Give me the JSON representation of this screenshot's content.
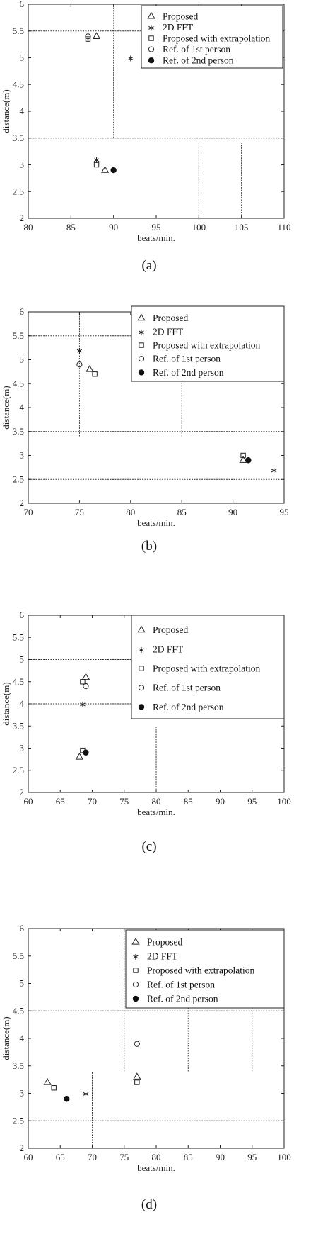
{
  "chart_data": [
    {
      "type": "scatter",
      "caption": "(a)",
      "xlabel": "beats/min.",
      "ylabel": "distance(m)",
      "xlim": [
        80,
        110
      ],
      "ylim": [
        2,
        6
      ],
      "xticks": [
        "80",
        "85",
        "90",
        "95",
        "100",
        "105",
        "110"
      ],
      "yticks": [
        "2",
        "2.5",
        "3",
        "3.5",
        "4",
        "4.5",
        "5",
        "5.5",
        "6"
      ],
      "legend_position": "top-right",
      "series": [
        {
          "name": "Proposed",
          "marker": "triangle",
          "points": [
            [
              88,
              5.4
            ],
            [
              89,
              2.9
            ]
          ]
        },
        {
          "name": "2D FFT",
          "marker": "star",
          "points": [
            [
              92,
              5.0
            ],
            [
              88,
              3.1
            ]
          ]
        },
        {
          "name": "Proposed with extrapolation",
          "marker": "square",
          "points": [
            [
              87,
              5.35
            ],
            [
              88,
              3.0
            ]
          ]
        },
        {
          "name": "Ref. of 1st person",
          "marker": "circle-open",
          "points": [
            [
              87,
              5.4
            ]
          ]
        },
        {
          "name": "Ref. of 2nd person",
          "marker": "circle-filled",
          "points": [
            [
              90,
              2.9
            ]
          ]
        }
      ]
    },
    {
      "type": "scatter",
      "caption": "(b)",
      "xlabel": "beats/min.",
      "ylabel": "distance(m)",
      "xlim": [
        70,
        95
      ],
      "ylim": [
        2,
        6
      ],
      "xticks": [
        "70",
        "75",
        "80",
        "85",
        "90",
        "95"
      ],
      "yticks": [
        "2",
        "2.5",
        "3",
        "3.5",
        "4",
        "4.5",
        "5",
        "5.5",
        "6"
      ],
      "legend_position": "top-right",
      "series": [
        {
          "name": "Proposed",
          "marker": "triangle",
          "points": [
            [
              76,
              4.8
            ],
            [
              91,
              2.9
            ]
          ]
        },
        {
          "name": "2D FFT",
          "marker": "star",
          "points": [
            [
              75,
              5.2
            ],
            [
              94,
              2.7
            ]
          ]
        },
        {
          "name": "Proposed with extrapolation",
          "marker": "square",
          "points": [
            [
              76.5,
              4.7
            ],
            [
              91,
              3.0
            ]
          ]
        },
        {
          "name": "Ref. of 1st person",
          "marker": "circle-open",
          "points": [
            [
              75,
              4.9
            ]
          ]
        },
        {
          "name": "Ref. of 2nd person",
          "marker": "circle-filled",
          "points": [
            [
              91.5,
              2.9
            ]
          ]
        }
      ]
    },
    {
      "type": "scatter",
      "caption": "(c)",
      "xlabel": "beats/min.",
      "ylabel": "distance(m)",
      "xlim": [
        60,
        100
      ],
      "ylim": [
        2,
        6
      ],
      "xticks": [
        "60",
        "65",
        "70",
        "75",
        "80",
        "85",
        "90",
        "95",
        "100"
      ],
      "yticks": [
        "2",
        "2.5",
        "3",
        "3.5",
        "4",
        "4.5",
        "5",
        "5.5",
        "6"
      ],
      "legend_position": "top-right",
      "series": [
        {
          "name": "Proposed",
          "marker": "triangle",
          "points": [
            [
              69,
              4.6
            ],
            [
              68,
              2.8
            ]
          ]
        },
        {
          "name": "2D FFT",
          "marker": "star",
          "points": [
            [
              68.5,
              4.0
            ]
          ]
        },
        {
          "name": "Proposed with extrapolation",
          "marker": "square",
          "points": [
            [
              68.5,
              4.5
            ],
            [
              68.5,
              2.95
            ]
          ]
        },
        {
          "name": "Ref. of 1st person",
          "marker": "circle-open",
          "points": [
            [
              69,
              4.4
            ]
          ]
        },
        {
          "name": "Ref. of 2nd person",
          "marker": "circle-filled",
          "points": [
            [
              69,
              2.9
            ]
          ]
        }
      ]
    },
    {
      "type": "scatter",
      "caption": "(d)",
      "xlabel": "beats/min.",
      "ylabel": "distance(m)",
      "xlim": [
        60,
        100
      ],
      "ylim": [
        2,
        6
      ],
      "xticks": [
        "60",
        "65",
        "70",
        "75",
        "80",
        "85",
        "90",
        "95",
        "100"
      ],
      "yticks": [
        "2",
        "2.5",
        "3",
        "3.5",
        "4",
        "4.5",
        "5",
        "5.5",
        "6"
      ],
      "legend_position": "top-right",
      "series": [
        {
          "name": "Proposed",
          "marker": "triangle",
          "points": [
            [
              63,
              3.2
            ],
            [
              77,
              3.3
            ]
          ]
        },
        {
          "name": "2D FFT",
          "marker": "star",
          "points": [
            [
              69,
              3.0
            ]
          ]
        },
        {
          "name": "Proposed with extrapolation",
          "marker": "square",
          "points": [
            [
              64,
              3.1
            ],
            [
              77,
              3.2
            ]
          ]
        },
        {
          "name": "Ref. of 1st person",
          "marker": "circle-open",
          "points": [
            [
              77,
              3.9
            ]
          ]
        },
        {
          "name": "Ref. of 2nd person",
          "marker": "circle-filled",
          "points": [
            [
              66,
              2.9
            ]
          ]
        }
      ]
    }
  ]
}
